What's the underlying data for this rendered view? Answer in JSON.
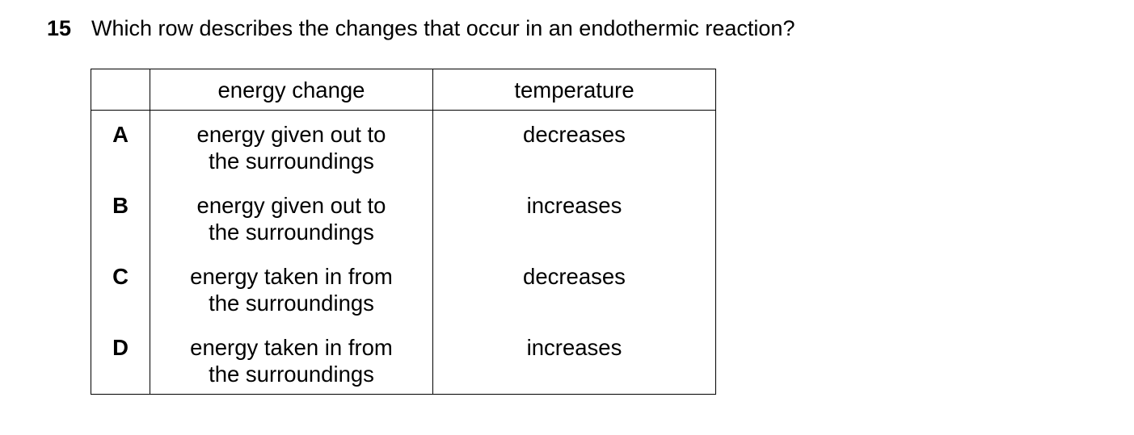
{
  "question": {
    "number": "15",
    "text": "Which row describes the changes that occur in an endothermic reaction?"
  },
  "table": {
    "header": [
      "energy change",
      "temperature"
    ],
    "rows": [
      [
        "A",
        "energy given out to the surroundings",
        "decreases"
      ],
      [
        "B",
        "energy given out to the surroundings",
        "increases"
      ],
      [
        "C",
        "energy taken in from the surroundings",
        "decreases"
      ],
      [
        "D",
        "energy taken in from the surroundings",
        "increases"
      ]
    ]
  }
}
